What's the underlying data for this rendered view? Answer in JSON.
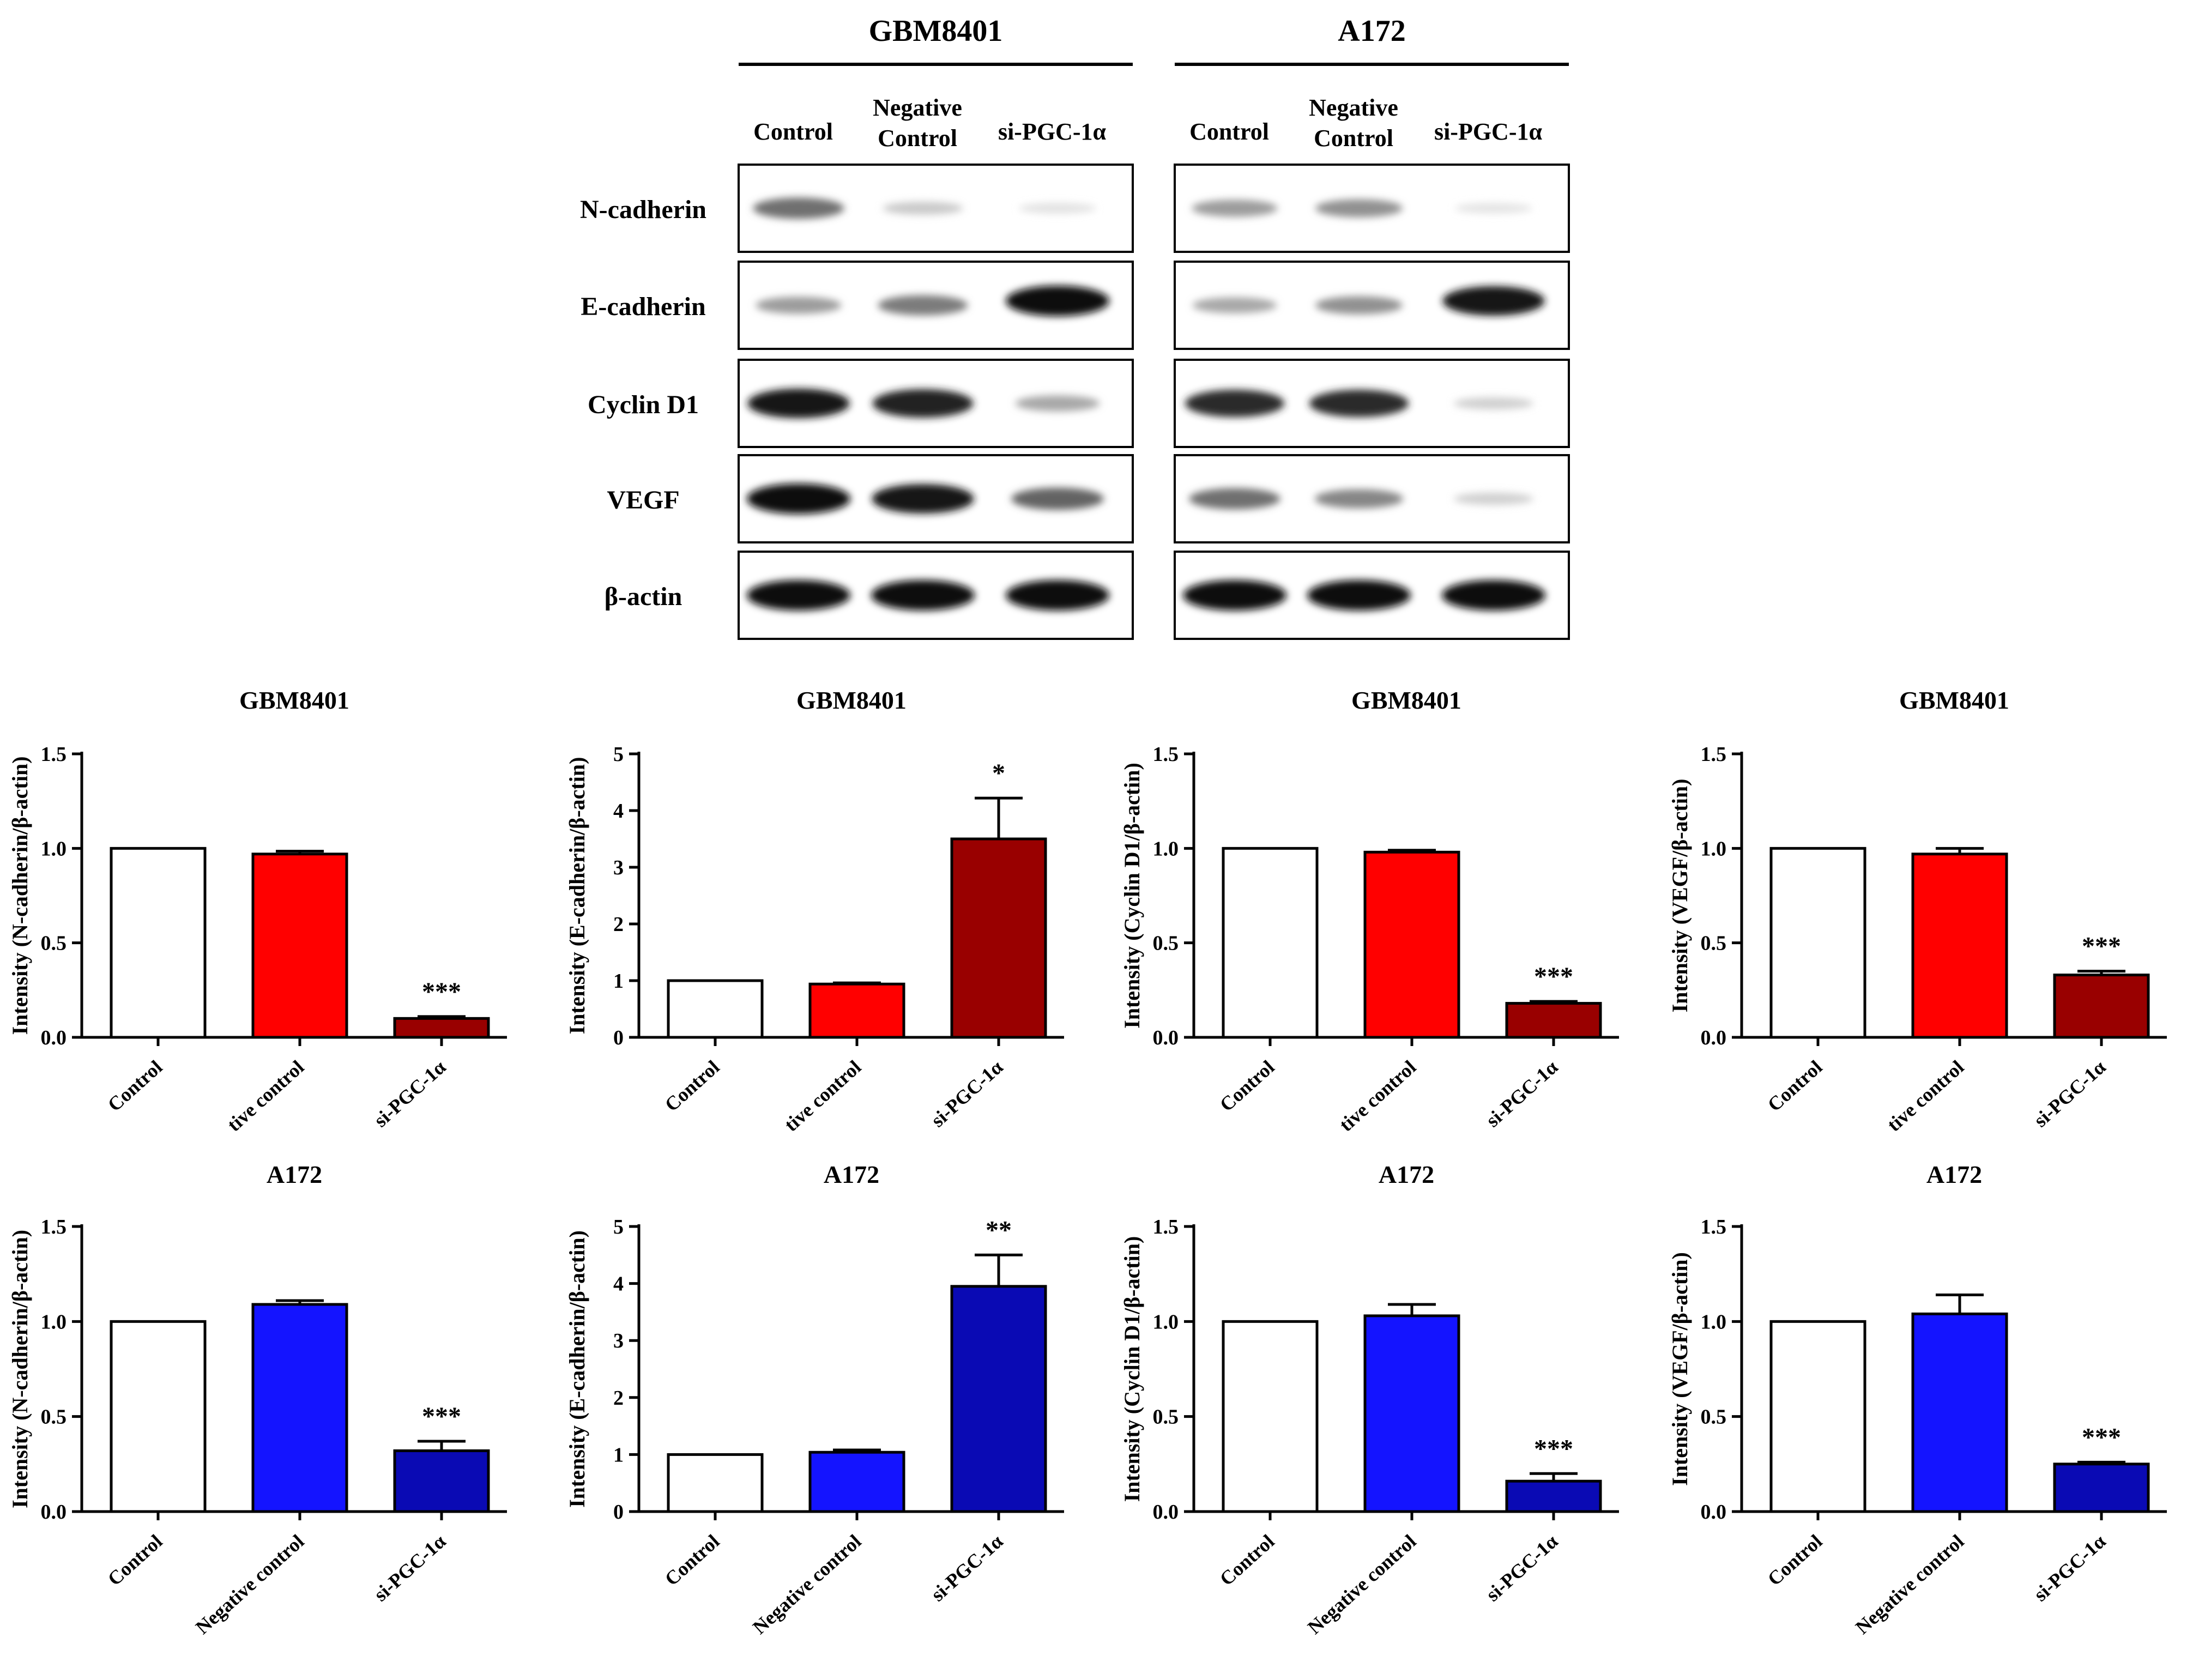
{
  "blot": {
    "groups": [
      {
        "name": "GBM8401",
        "lanes": [
          "Control",
          "Negative\nControl",
          "si-PGC-1α"
        ]
      },
      {
        "name": "A172",
        "lanes": [
          "Control",
          "Negative\nControl",
          "si-PGC-1α"
        ]
      }
    ],
    "rows": [
      {
        "label": "N-cadherin",
        "band_intensity": [
          [
            0.55,
            0.15,
            0.04
          ],
          [
            0.35,
            0.4,
            0.03
          ]
        ]
      },
      {
        "label": "E-cadherin",
        "band_intensity": [
          [
            0.35,
            0.5,
            1.0
          ],
          [
            0.3,
            0.4,
            0.95
          ]
        ]
      },
      {
        "label": "Cyclin D1",
        "band_intensity": [
          [
            0.95,
            0.9,
            0.3
          ],
          [
            0.85,
            0.85,
            0.12
          ]
        ]
      },
      {
        "label": "VEGF",
        "band_intensity": [
          [
            1.0,
            0.95,
            0.6
          ],
          [
            0.55,
            0.45,
            0.12
          ]
        ]
      },
      {
        "label": "β-actin",
        "band_intensity": [
          [
            1.0,
            1.0,
            1.0
          ],
          [
            1.0,
            1.0,
            1.0
          ]
        ]
      }
    ]
  },
  "colors": {
    "control": "#ffffff",
    "gbm_negative": "#ff0000",
    "gbm_si": "#990000",
    "a172_negative": "#1414ff",
    "a172_si": "#0a0ab4",
    "axis": "#000000"
  },
  "chart_data": [
    {
      "type": "bar",
      "title": "GBM8401",
      "ylabel": "Intensity (N-cadherin/β-actin)",
      "categories": [
        "Control",
        "Negative control",
        "si-PGC-1α"
      ],
      "values": [
        1.0,
        0.97,
        0.1
      ],
      "errors": [
        0,
        0.015,
        0.01
      ],
      "significance": [
        "",
        "",
        "***"
      ],
      "ylim": [
        0,
        1.5
      ],
      "yticks": [
        "0.0",
        "0.5",
        "1.0",
        "1.5"
      ],
      "ytick_values": [
        0,
        0.5,
        1.0,
        1.5
      ],
      "visible_xlabels": [
        "Control",
        "tive control",
        "si-PGC-1α"
      ],
      "cell_line": "gbm"
    },
    {
      "type": "bar",
      "title": "GBM8401",
      "ylabel": "Intensity (E-cadherin/β-actin)",
      "categories": [
        "Control",
        "Negative control",
        "si-PGC-1α"
      ],
      "values": [
        1.0,
        0.94,
        3.5
      ],
      "errors": [
        0,
        0.02,
        0.72
      ],
      "significance": [
        "",
        "",
        "*"
      ],
      "ylim": [
        0,
        5
      ],
      "yticks": [
        "0",
        "1",
        "2",
        "3",
        "4",
        "5"
      ],
      "ytick_values": [
        0,
        1,
        2,
        3,
        4,
        5
      ],
      "visible_xlabels": [
        "Control",
        "tive control",
        "si-PGC-1α"
      ],
      "cell_line": "gbm"
    },
    {
      "type": "bar",
      "title": "GBM8401",
      "ylabel": "Intensity (Cyclin D1/β-actin)",
      "categories": [
        "Control",
        "Negative control",
        "si-PGC-1α"
      ],
      "values": [
        1.0,
        0.98,
        0.18
      ],
      "errors": [
        0,
        0.01,
        0.01
      ],
      "significance": [
        "",
        "",
        "***"
      ],
      "ylim": [
        0,
        1.5
      ],
      "yticks": [
        "0.0",
        "0.5",
        "1.0",
        "1.5"
      ],
      "ytick_values": [
        0,
        0.5,
        1.0,
        1.5
      ],
      "visible_xlabels": [
        "Control",
        "tive control",
        "si-PGC-1α"
      ],
      "cell_line": "gbm"
    },
    {
      "type": "bar",
      "title": "GBM8401",
      "ylabel": "Intensity (VEGF/β-actin)",
      "categories": [
        "Control",
        "Negative control",
        "si-PGC-1α"
      ],
      "values": [
        1.0,
        0.97,
        0.33
      ],
      "errors": [
        0,
        0.03,
        0.02
      ],
      "significance": [
        "",
        "",
        "***"
      ],
      "ylim": [
        0,
        1.5
      ],
      "yticks": [
        "0.0",
        "0.5",
        "1.0",
        "1.5"
      ],
      "ytick_values": [
        0,
        0.5,
        1.0,
        1.5
      ],
      "visible_xlabels": [
        "Control",
        "tive control",
        "si-PGC-1α"
      ],
      "cell_line": "gbm"
    },
    {
      "type": "bar",
      "title": "A172",
      "ylabel": "Intensity (N-cadherin/β-actin)",
      "categories": [
        "Control",
        "Negative control",
        "si-PGC-1α"
      ],
      "values": [
        1.0,
        1.09,
        0.32
      ],
      "errors": [
        0,
        0.02,
        0.05
      ],
      "significance": [
        "",
        "",
        "***"
      ],
      "ylim": [
        0,
        1.5
      ],
      "yticks": [
        "0.0",
        "0.5",
        "1.0",
        "1.5"
      ],
      "ytick_values": [
        0,
        0.5,
        1.0,
        1.5
      ],
      "visible_xlabels": [
        "Control",
        "Negative control",
        "si-PGC-1α"
      ],
      "cell_line": "a172"
    },
    {
      "type": "bar",
      "title": "A172",
      "ylabel": "Intensity (E-cadherin/β-actin)",
      "categories": [
        "Control",
        "Negative control",
        "si-PGC-1α"
      ],
      "values": [
        1.0,
        1.04,
        3.95
      ],
      "errors": [
        0,
        0.04,
        0.55
      ],
      "significance": [
        "",
        "",
        "**"
      ],
      "ylim": [
        0,
        5
      ],
      "yticks": [
        "0",
        "1",
        "2",
        "3",
        "4",
        "5"
      ],
      "ytick_values": [
        0,
        1,
        2,
        3,
        4,
        5
      ],
      "visible_xlabels": [
        "Control",
        "Negative control",
        "si-PGC-1α"
      ],
      "cell_line": "a172"
    },
    {
      "type": "bar",
      "title": "A172",
      "ylabel": "Intensity (Cyclin D1/β-actin)",
      "categories": [
        "Control",
        "Negative control",
        "si-PGC-1α"
      ],
      "values": [
        1.0,
        1.03,
        0.16
      ],
      "errors": [
        0,
        0.06,
        0.04
      ],
      "significance": [
        "",
        "",
        "***"
      ],
      "ylim": [
        0,
        1.5
      ],
      "yticks": [
        "0.0",
        "0.5",
        "1.0",
        "1.5"
      ],
      "ytick_values": [
        0,
        0.5,
        1.0,
        1.5
      ],
      "visible_xlabels": [
        "Control",
        "Negative control",
        "si-PGC-1α"
      ],
      "cell_line": "a172"
    },
    {
      "type": "bar",
      "title": "A172",
      "ylabel": "Intensity (VEGF/β-actin)",
      "categories": [
        "Control",
        "Negative control",
        "si-PGC-1α"
      ],
      "values": [
        1.0,
        1.04,
        0.25
      ],
      "errors": [
        0,
        0.1,
        0.01
      ],
      "significance": [
        "",
        "",
        "***"
      ],
      "ylim": [
        0,
        1.5
      ],
      "yticks": [
        "0.0",
        "0.5",
        "1.0",
        "1.5"
      ],
      "ytick_values": [
        0,
        0.5,
        1.0,
        1.5
      ],
      "visible_xlabels": [
        "Control",
        "Negative control",
        "si-PGC-1α"
      ],
      "cell_line": "a172"
    }
  ]
}
